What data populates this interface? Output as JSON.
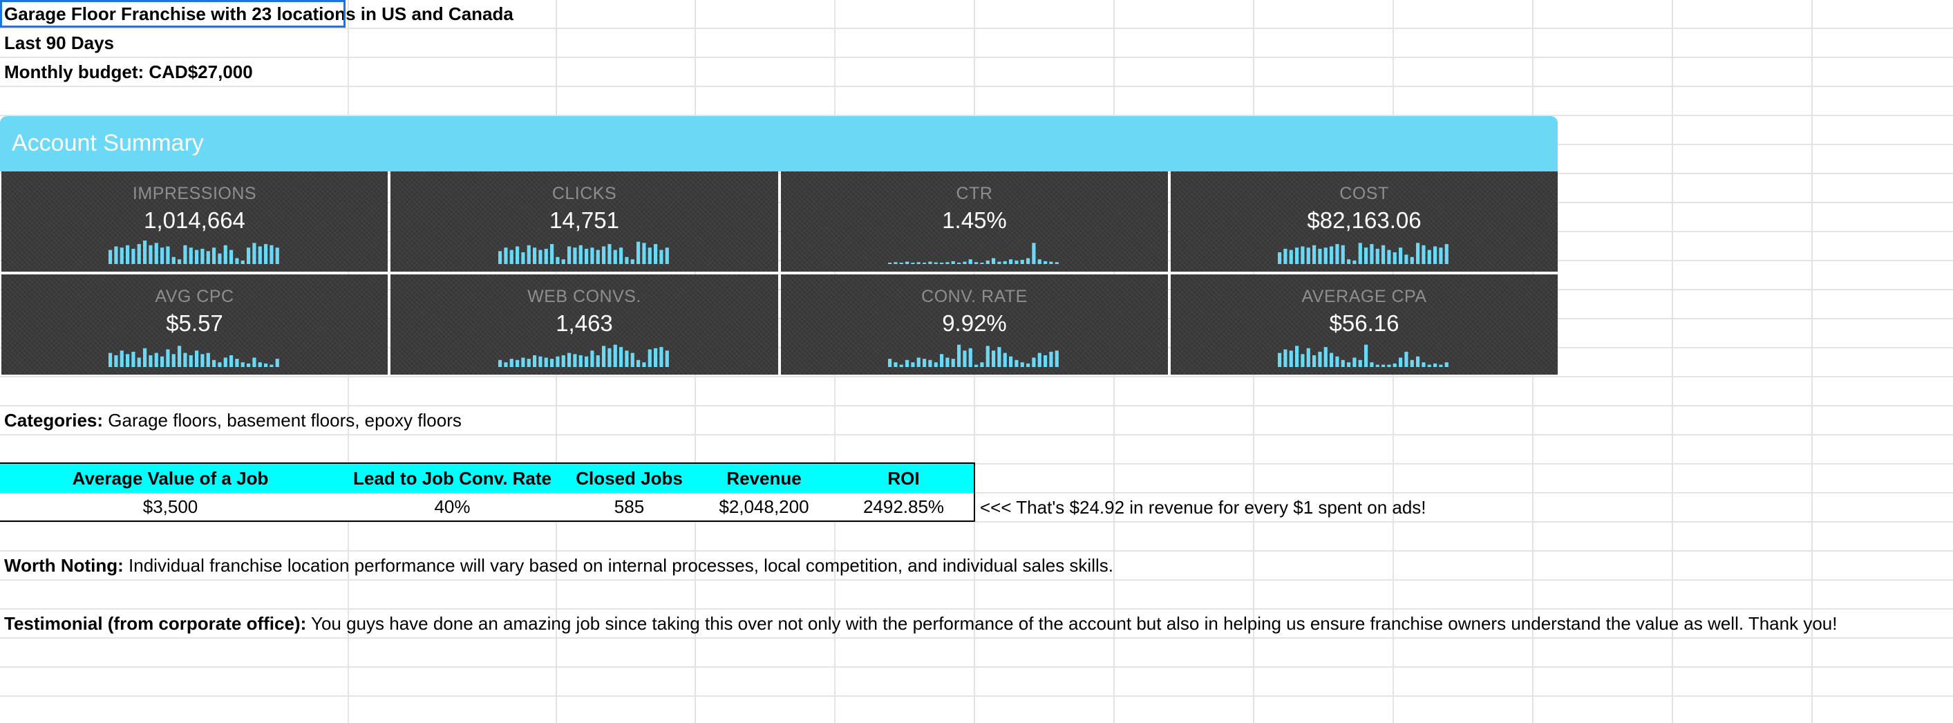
{
  "header": {
    "title": "Garage Floor Franchise with 23 locations in US and Canada",
    "period": "Last 90 Days",
    "budget": "Monthly budget: CAD$27,000"
  },
  "summary": {
    "title": "Account Summary",
    "accent_color": "#6bd8f6",
    "tile_color": "#3b3b3b",
    "tiles": [
      {
        "label": "IMPRESSIONS",
        "value": "1,014,664",
        "spark": [
          0.6,
          0.75,
          0.7,
          0.8,
          0.65,
          0.85,
          1.0,
          0.8,
          0.9,
          0.7,
          0.75,
          0.3,
          0.2,
          0.8,
          0.7,
          0.6,
          0.65,
          0.55,
          0.7,
          0.45,
          0.8,
          0.6,
          0.25,
          0.15,
          0.7,
          0.9,
          0.75,
          0.85,
          0.8,
          0.7
        ]
      },
      {
        "label": "CLICKS",
        "value": "14,751",
        "spark": [
          0.55,
          0.7,
          0.6,
          0.75,
          0.5,
          0.8,
          0.7,
          0.6,
          0.65,
          0.85,
          0.3,
          0.2,
          0.75,
          0.7,
          0.8,
          0.65,
          0.7,
          0.6,
          0.75,
          0.85,
          0.6,
          0.7,
          0.3,
          0.2,
          0.95,
          0.9,
          0.7,
          0.85,
          0.6,
          0.7
        ]
      },
      {
        "label": "CTR",
        "value": "1.45%",
        "spark": [
          0.05,
          0.08,
          0.06,
          0.1,
          0.05,
          0.08,
          0.06,
          0.1,
          0.07,
          0.05,
          0.08,
          0.12,
          0.06,
          0.1,
          0.2,
          0.08,
          0.06,
          0.15,
          0.25,
          0.1,
          0.12,
          0.2,
          0.15,
          0.18,
          0.25,
          0.9,
          0.2,
          0.12,
          0.1,
          0.08
        ]
      },
      {
        "label": "COST",
        "value": "$82,163.06",
        "spark": [
          0.5,
          0.65,
          0.6,
          0.7,
          0.75,
          0.7,
          0.8,
          0.65,
          0.7,
          0.75,
          0.85,
          0.8,
          0.2,
          0.15,
          0.9,
          0.7,
          0.85,
          0.65,
          0.8,
          0.6,
          0.5,
          0.7,
          0.4,
          0.3,
          0.9,
          0.8,
          0.6,
          0.75,
          0.7,
          0.85
        ]
      },
      {
        "label": "AVG CPC",
        "value": "$5.57",
        "spark": [
          0.6,
          0.5,
          0.7,
          0.55,
          0.65,
          0.4,
          0.8,
          0.5,
          0.6,
          0.45,
          0.75,
          0.55,
          0.9,
          0.6,
          0.5,
          0.7,
          0.55,
          0.6,
          0.3,
          0.2,
          0.4,
          0.5,
          0.35,
          0.2,
          0.15,
          0.4,
          0.2,
          0.15,
          0.1,
          0.35
        ]
      },
      {
        "label": "WEB CONVS.",
        "value": "1,463",
        "spark": [
          0.3,
          0.2,
          0.35,
          0.3,
          0.4,
          0.35,
          0.5,
          0.45,
          0.4,
          0.35,
          0.45,
          0.5,
          0.6,
          0.55,
          0.5,
          0.45,
          0.7,
          0.5,
          0.9,
          0.8,
          0.95,
          0.85,
          0.7,
          0.6,
          0.3,
          0.2,
          0.75,
          0.8,
          0.85,
          0.7
        ]
      },
      {
        "label": "CONV. RATE",
        "value": "9.92%",
        "spark": [
          0.35,
          0.2,
          0.1,
          0.3,
          0.2,
          0.4,
          0.35,
          0.3,
          0.2,
          0.55,
          0.4,
          0.35,
          0.95,
          0.7,
          0.8,
          0.1,
          0.2,
          0.9,
          0.7,
          0.85,
          0.6,
          0.45,
          0.3,
          0.2,
          0.15,
          0.4,
          0.6,
          0.5,
          0.65,
          0.7
        ]
      },
      {
        "label": "AVERAGE CPA",
        "value": "$56.16",
        "spark": [
          0.6,
          0.75,
          0.7,
          0.9,
          0.55,
          0.8,
          0.5,
          0.65,
          0.85,
          0.6,
          0.45,
          0.3,
          0.2,
          0.4,
          0.3,
          0.95,
          0.2,
          0.1,
          0.1,
          0.1,
          0.15,
          0.4,
          0.65,
          0.3,
          0.45,
          0.2,
          0.1,
          0.15,
          0.1,
          0.2
        ]
      }
    ]
  },
  "categories": {
    "label": "Categories:",
    "text": " Garage floors, basement floors, epoxy floors"
  },
  "roi_table": {
    "header_color": "#00ffff",
    "headers": [
      "Average Value of a Job",
      "Lead to Job Conv. Rate",
      "Closed Jobs",
      "Revenue",
      "ROI"
    ],
    "values": [
      "$3,500",
      "40%",
      "585",
      "$2,048,200",
      "2492.85%"
    ],
    "note": "<<< That's $24.92 in revenue for every $1 spent on ads!"
  },
  "worth_noting": {
    "label": "Worth Noting:",
    "text": " Individual franchise location performance will vary based on internal processes, local competition, and individual sales skills."
  },
  "testimonial": {
    "label": "Testimonial (from corporate office):",
    "text": " You guys have done an amazing job since taking this over not only with the performance of the account but also in helping us ensure franchise owners understand the value as well.  Thank you!"
  }
}
